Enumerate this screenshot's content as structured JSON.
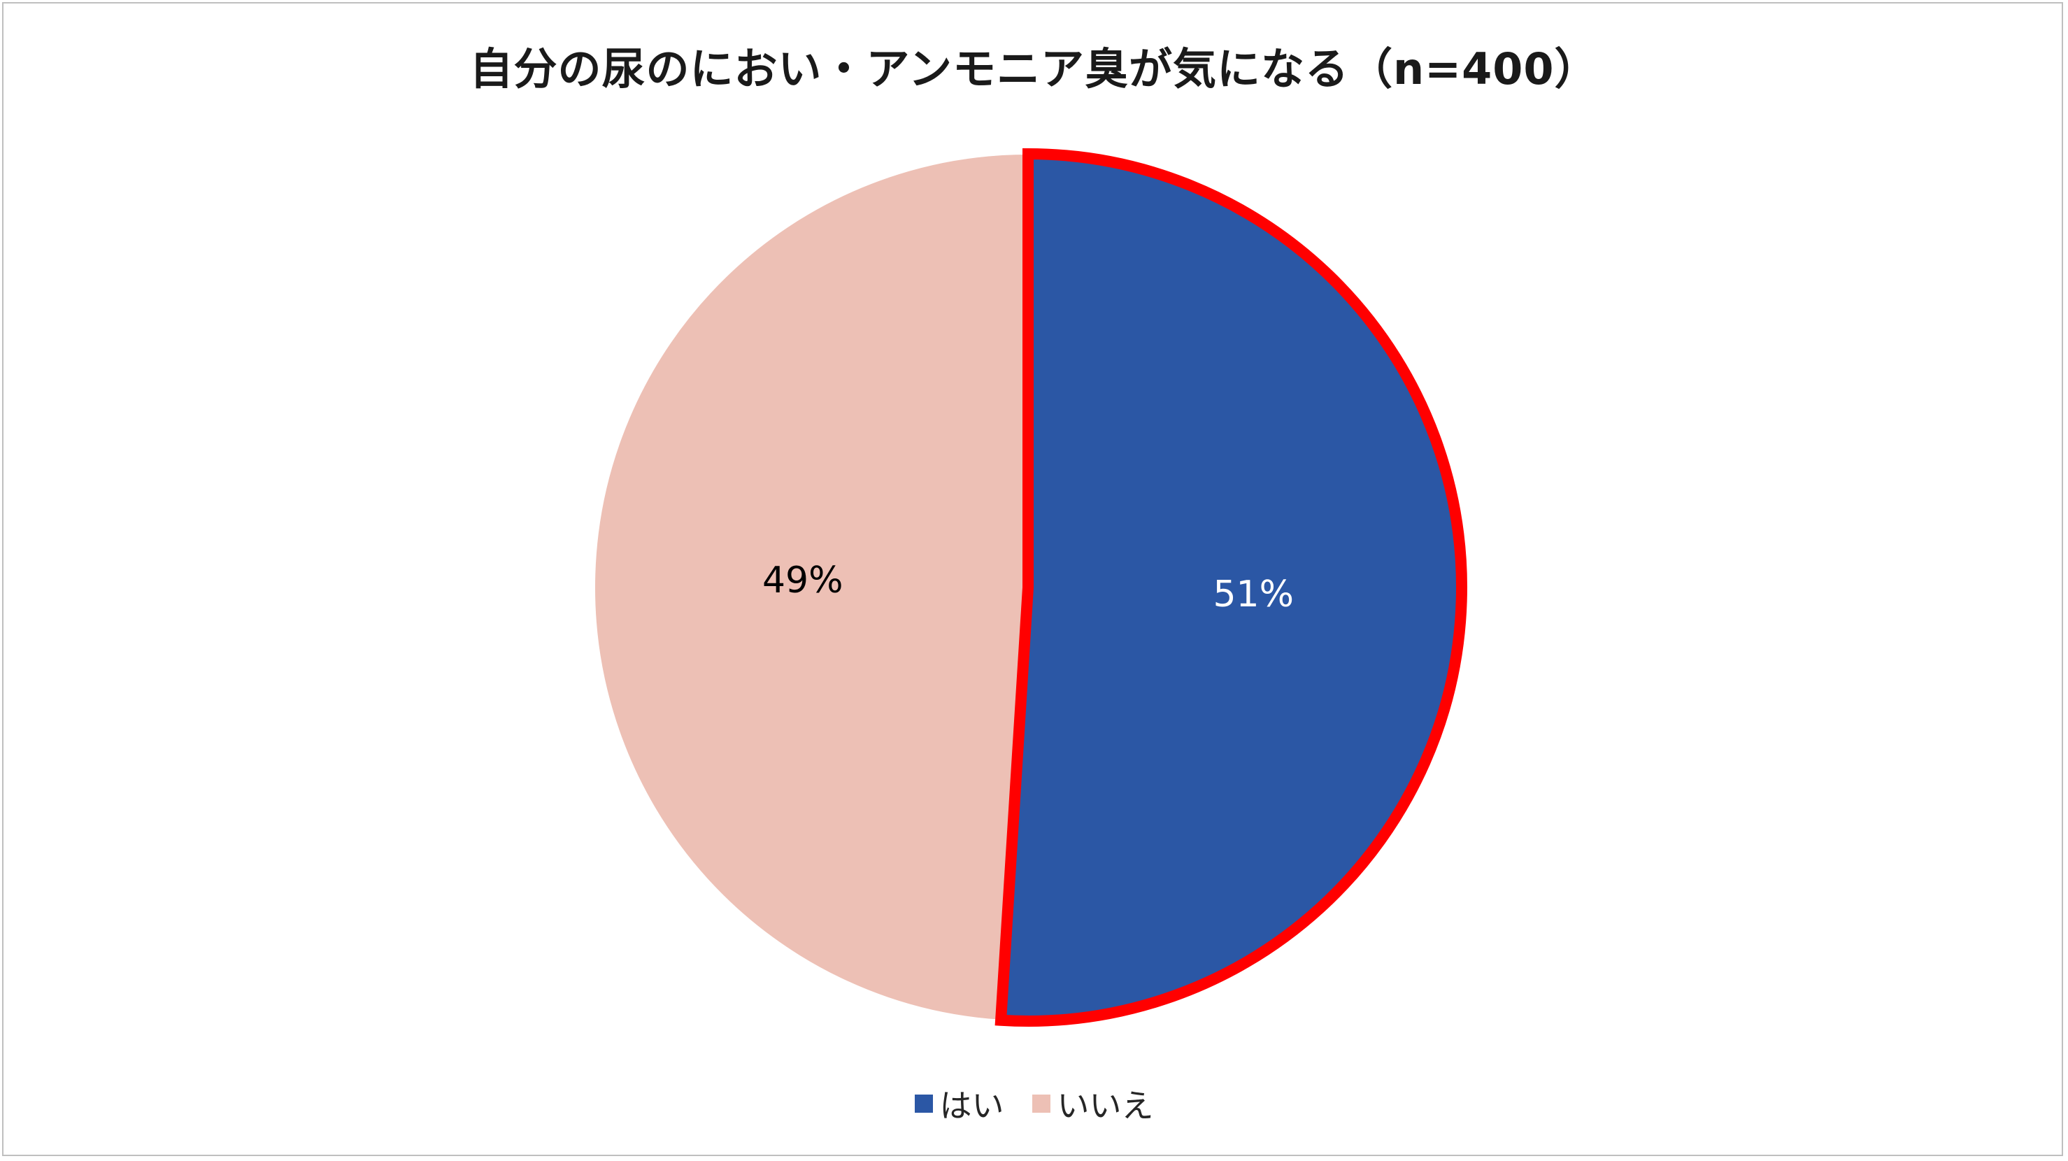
{
  "chart_data": {
    "type": "pie",
    "title": "自分の尿のにおい・アンモニア臭が気になる（n=400）",
    "categories": [
      "はい",
      "いいえ"
    ],
    "values": [
      51,
      49
    ],
    "labels": [
      "51%",
      "49%"
    ],
    "colors": [
      "#2b57a5",
      "#edc0b5"
    ],
    "highlight_color": "#ff0000",
    "highlighted_slice": "はい",
    "label_colors": [
      "#ffffff",
      "#000000"
    ],
    "legend_position": "bottom"
  }
}
